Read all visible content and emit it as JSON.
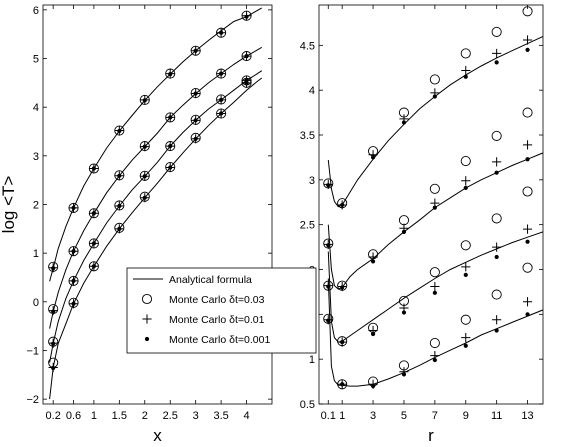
{
  "chart_data": [
    {
      "type": "scatter",
      "xlabel": "x",
      "ylabel": "log <T>",
      "xlim": [
        0,
        4.5
      ],
      "ylim": [
        -2.1,
        6.1
      ],
      "xticks": [
        0.2,
        0.6,
        1,
        1.5,
        2,
        2.5,
        3,
        3.5,
        4
      ],
      "xtick_labels": [
        "0.2",
        "0.6",
        "1",
        "1.5",
        "2",
        "2.5",
        "3",
        "3.5",
        "4"
      ],
      "yticks": [
        -2,
        -1,
        0,
        1,
        2,
        3,
        4,
        5,
        6
      ],
      "ytick_labels": [
        "−2",
        "−1",
        "0",
        "1",
        "2",
        "3",
        "4",
        "5",
        "6"
      ],
      "legend_position": "bottom-right",
      "legend": [
        "Analytical formula",
        "Monte Carlo δt=0.03",
        "Monte Carlo δt=0.01",
        "Monte Carlo δt=0.001"
      ],
      "curves": [
        {
          "analytical": {
            "x": [
              0.13,
              0.2,
              0.3,
              0.45,
              0.6,
              0.8,
              1,
              1.25,
              1.5,
              1.75,
              2,
              2.25,
              2.5,
              2.75,
              3,
              3.25,
              3.5,
              3.75,
              4,
              4.2,
              4.3
            ],
            "y": [
              0.42,
              0.69,
              1.1,
              1.55,
              1.93,
              2.38,
              2.74,
              3.16,
              3.51,
              3.83,
              4.14,
              4.42,
              4.68,
              4.93,
              5.16,
              5.37,
              5.57,
              5.76,
              5.86,
              5.98,
              6.04
            ]
          },
          "mc_dt_0.03": {
            "x": [
              0.2,
              0.6,
              1,
              1.5,
              2,
              2.5,
              3,
              3.5,
              4
            ],
            "y": [
              0.72,
              1.93,
              2.74,
              3.52,
              4.15,
              4.69,
              5.16,
              5.53,
              5.88
            ]
          },
          "mc_dt_0.01": {
            "x": [
              0.2,
              0.6,
              1,
              1.5,
              2,
              2.5,
              3,
              3.5,
              4
            ],
            "y": [
              0.7,
              1.93,
              2.74,
              3.52,
              4.15,
              4.69,
              5.16,
              5.53,
              5.88
            ]
          },
          "mc_dt_0.001": {
            "x": [
              0.2,
              0.6,
              1,
              1.5,
              2,
              2.5,
              3,
              3.5,
              4
            ],
            "y": [
              0.69,
              1.93,
              2.74,
              3.51,
              4.14,
              4.68,
              5.16,
              5.53,
              5.86
            ]
          }
        },
        {
          "analytical": {
            "x": [
              0.13,
              0.2,
              0.3,
              0.45,
              0.6,
              0.8,
              1,
              1.25,
              1.5,
              1.75,
              2,
              2.25,
              2.5,
              2.75,
              3,
              3.25,
              3.5,
              3.75,
              4,
              4.2,
              4.3
            ],
            "y": [
              -0.55,
              -0.2,
              0.2,
              0.66,
              1.04,
              1.46,
              1.82,
              2.24,
              2.59,
              2.91,
              3.19,
              3.47,
              3.79,
              4.04,
              4.28,
              4.5,
              4.69,
              4.88,
              5.05,
              5.17,
              5.23
            ]
          },
          "mc_dt_0.03": {
            "x": [
              0.2,
              0.6,
              1,
              1.5,
              2,
              2.5,
              3,
              3.5,
              4
            ],
            "y": [
              -0.15,
              1.04,
              1.82,
              2.6,
              3.2,
              3.79,
              4.29,
              4.69,
              5.05
            ]
          },
          "mc_dt_0.01": {
            "x": [
              0.2,
              0.6,
              1,
              1.5,
              2,
              2.5,
              3,
              3.5,
              4
            ],
            "y": [
              -0.18,
              1.04,
              1.82,
              2.59,
              3.19,
              3.79,
              4.28,
              4.69,
              5.05
            ]
          },
          "mc_dt_0.001": {
            "x": [
              0.2,
              0.6,
              1,
              1.5,
              2,
              2.5,
              3,
              3.5,
              4
            ],
            "y": [
              -0.2,
              1.04,
              1.82,
              2.59,
              3.19,
              3.79,
              4.28,
              4.69,
              5.05
            ]
          }
        },
        {
          "analytical": {
            "x": [
              0.13,
              0.2,
              0.3,
              0.45,
              0.6,
              0.8,
              1,
              1.25,
              1.5,
              1.75,
              2,
              2.25,
              2.5,
              2.75,
              3,
              3.25,
              3.5,
              3.75,
              4,
              4.2,
              4.3
            ],
            "y": [
              -1.25,
              -0.85,
              -0.4,
              0.07,
              0.43,
              0.85,
              1.2,
              1.62,
              1.97,
              2.3,
              2.58,
              2.87,
              3.2,
              3.48,
              3.73,
              3.96,
              4.15,
              4.35,
              4.55,
              4.68,
              4.75
            ]
          },
          "mc_dt_0.03": {
            "x": [
              0.2,
              0.6,
              1,
              1.5,
              2,
              2.5,
              3,
              3.5,
              4
            ],
            "y": [
              -0.82,
              0.43,
              1.2,
              1.98,
              2.59,
              3.2,
              3.74,
              4.16,
              4.55
            ]
          },
          "mc_dt_0.01": {
            "x": [
              0.2,
              0.6,
              1,
              1.5,
              2,
              2.5,
              3,
              3.5,
              4
            ],
            "y": [
              -0.85,
              0.43,
              1.2,
              1.97,
              2.58,
              3.2,
              3.73,
              4.15,
              4.55
            ]
          },
          "mc_dt_0.001": {
            "x": [
              0.2,
              0.6,
              1,
              1.5,
              2,
              2.5,
              3,
              3.5,
              4
            ],
            "y": [
              -0.86,
              0.43,
              1.2,
              1.97,
              2.58,
              3.2,
              3.73,
              4.15,
              4.55
            ]
          }
        },
        {
          "analytical": {
            "x": [
              0.13,
              0.2,
              0.3,
              0.45,
              0.6,
              0.8,
              1,
              1.25,
              1.5,
              1.75,
              2,
              2.25,
              2.5,
              2.75,
              3,
              3.25,
              3.5,
              3.75,
              4,
              4.2,
              4.3
            ],
            "y": [
              -2.0,
              -1.35,
              -0.85,
              -0.45,
              -0.04,
              0.38,
              0.73,
              1.14,
              1.5,
              1.83,
              2.14,
              2.44,
              2.76,
              3.06,
              3.35,
              3.62,
              3.87,
              4.1,
              4.35,
              4.52,
              4.6
            ]
          },
          "mc_dt_0.03": {
            "x": [
              0.2,
              0.6,
              1,
              1.5,
              2,
              2.5,
              3,
              3.5,
              4
            ],
            "y": [
              -1.25,
              -0.02,
              0.73,
              1.52,
              2.16,
              2.77,
              3.37,
              3.87,
              4.5
            ]
          },
          "mc_dt_0.01": {
            "x": [
              0.2,
              0.6,
              1,
              1.5,
              2,
              2.5,
              3,
              3.5,
              4
            ],
            "y": [
              -1.35,
              -0.04,
              0.73,
              1.5,
              2.14,
              2.76,
              3.35,
              3.87,
              4.5
            ]
          },
          "mc_dt_0.001": {
            "x": [
              0.2,
              0.6,
              1,
              1.5,
              2,
              2.5,
              3,
              3.5,
              4
            ],
            "y": [
              -1.36,
              -0.04,
              0.73,
              1.5,
              2.14,
              2.76,
              3.35,
              3.87,
              4.5
            ]
          }
        }
      ]
    },
    {
      "type": "scatter",
      "xlabel": "r",
      "ylabel": "",
      "xlim": [
        -0.5,
        14
      ],
      "ylim": [
        0.5,
        4.95
      ],
      "xticks": [
        0.1,
        1,
        3,
        5,
        7,
        9,
        11,
        13
      ],
      "xtick_labels": [
        "0.1",
        "1",
        "3",
        "5",
        "7",
        "9",
        "11",
        "13"
      ],
      "yticks": [
        0.5,
        1,
        1.5,
        2,
        2.5,
        3,
        3.5,
        4,
        4.5
      ],
      "ytick_labels": [
        "0.5",
        "1",
        "1.5",
        "2",
        "2.5",
        "3",
        "3.5",
        "4",
        "4.5"
      ],
      "curves": [
        {
          "analytical": {
            "x": [
              0.1,
              0.3,
              0.5,
              0.75,
              1,
              1.5,
              2,
              3,
              4,
              5,
              6,
              7,
              8,
              9,
              10,
              11,
              12,
              13,
              14
            ],
            "y": [
              3.22,
              2.9,
              2.76,
              2.7,
              2.72,
              2.86,
              3.0,
              3.23,
              3.44,
              3.62,
              3.79,
              3.93,
              4.06,
              4.17,
              4.27,
              4.36,
              4.44,
              4.52,
              4.6
            ]
          },
          "mc_dt_0.03": {
            "x": [
              0.1,
              1,
              3,
              5,
              7,
              9,
              11,
              13
            ],
            "y": [
              2.96,
              2.74,
              3.32,
              3.75,
              4.12,
              4.41,
              4.65,
              4.88
            ]
          },
          "mc_dt_0.01": {
            "x": [
              0.1,
              1,
              3,
              5,
              7,
              9,
              11,
              13
            ],
            "y": [
              2.95,
              2.72,
              3.28,
              3.68,
              3.97,
              4.22,
              4.41,
              4.56
            ]
          },
          "mc_dt_0.001": {
            "x": [
              0.1,
              1,
              3,
              5,
              7,
              9,
              11,
              13
            ],
            "y": [
              2.94,
              2.72,
              3.25,
              3.64,
              3.93,
              4.15,
              4.31,
              4.45
            ]
          }
        },
        {
          "analytical": {
            "x": [
              0.1,
              0.3,
              0.5,
              0.75,
              1,
              1.5,
              2,
              3,
              4,
              5,
              6,
              7,
              8,
              9,
              10,
              11,
              12,
              13,
              14
            ],
            "y": [
              2.5,
              2.0,
              1.82,
              1.78,
              1.8,
              1.92,
              2.0,
              2.12,
              2.28,
              2.42,
              2.55,
              2.69,
              2.8,
              2.91,
              3.0,
              3.08,
              3.16,
              3.23,
              3.3
            ]
          },
          "mc_dt_0.03": {
            "x": [
              0.1,
              1,
              3,
              5,
              7,
              9,
              11,
              13
            ],
            "y": [
              2.29,
              1.82,
              2.17,
              2.55,
              2.9,
              3.21,
              3.49,
              3.75
            ]
          },
          "mc_dt_0.01": {
            "x": [
              0.1,
              1,
              3,
              5,
              7,
              9,
              11,
              13
            ],
            "y": [
              2.28,
              1.81,
              2.14,
              2.46,
              2.74,
              2.99,
              3.2,
              3.39
            ]
          },
          "mc_dt_0.001": {
            "x": [
              0.1,
              1,
              3,
              5,
              7,
              9,
              11,
              13
            ],
            "y": [
              2.27,
              1.8,
              2.09,
              2.42,
              2.69,
              2.91,
              3.08,
              3.23
            ]
          }
        },
        {
          "analytical": {
            "x": [
              0.1,
              0.3,
              0.5,
              0.75,
              1,
              1.5,
              2,
              3,
              4,
              5,
              6,
              7,
              8,
              9,
              10,
              11,
              12,
              13,
              14
            ],
            "y": [
              2.2,
              1.42,
              1.24,
              1.19,
              1.2,
              1.26,
              1.32,
              1.44,
              1.56,
              1.68,
              1.79,
              1.9,
              2.0,
              2.08,
              2.16,
              2.23,
              2.3,
              2.36,
              2.42
            ]
          },
          "mc_dt_0.03": {
            "x": [
              0.1,
              1,
              3,
              5,
              7,
              9,
              11,
              13
            ],
            "y": [
              1.82,
              1.2,
              1.35,
              1.65,
              1.97,
              2.27,
              2.57,
              2.87
            ]
          },
          "mc_dt_0.01": {
            "x": [
              0.1,
              1,
              3,
              5,
              7,
              9,
              11,
              13
            ],
            "y": [
              1.82,
              1.19,
              1.32,
              1.57,
              1.81,
              2.03,
              2.25,
              2.45
            ]
          },
          "mc_dt_0.001": {
            "x": [
              0.1,
              1,
              3,
              5,
              7,
              9,
              11,
              13
            ],
            "y": [
              1.81,
              1.19,
              1.28,
              1.52,
              1.74,
              1.94,
              2.14,
              2.31
            ]
          }
        },
        {
          "analytical": {
            "x": [
              0.1,
              0.3,
              0.5,
              0.75,
              1,
              1.5,
              2,
              3,
              4,
              5,
              6,
              7,
              8,
              9,
              10,
              11,
              12,
              13,
              14
            ],
            "y": [
              1.9,
              0.92,
              0.76,
              0.71,
              0.71,
              0.7,
              0.7,
              0.72,
              0.78,
              0.85,
              0.93,
              1.02,
              1.1,
              1.18,
              1.27,
              1.34,
              1.41,
              1.48,
              1.55
            ]
          },
          "mc_dt_0.03": {
            "x": [
              0.1,
              1,
              3,
              5,
              7,
              9,
              11,
              13
            ],
            "y": [
              1.45,
              0.72,
              0.75,
              0.93,
              1.18,
              1.44,
              1.72,
              2.02
            ]
          },
          "mc_dt_0.01": {
            "x": [
              0.1,
              1,
              3,
              5,
              7,
              9,
              11,
              13
            ],
            "y": [
              1.44,
              0.72,
              0.72,
              0.86,
              1.04,
              1.24,
              1.44,
              1.64
            ]
          },
          "mc_dt_0.001": {
            "x": [
              0.1,
              1,
              3,
              5,
              7,
              9,
              11,
              13
            ],
            "y": [
              1.43,
              0.72,
              0.7,
              0.83,
              0.99,
              1.15,
              1.32,
              1.5
            ]
          }
        }
      ]
    }
  ]
}
